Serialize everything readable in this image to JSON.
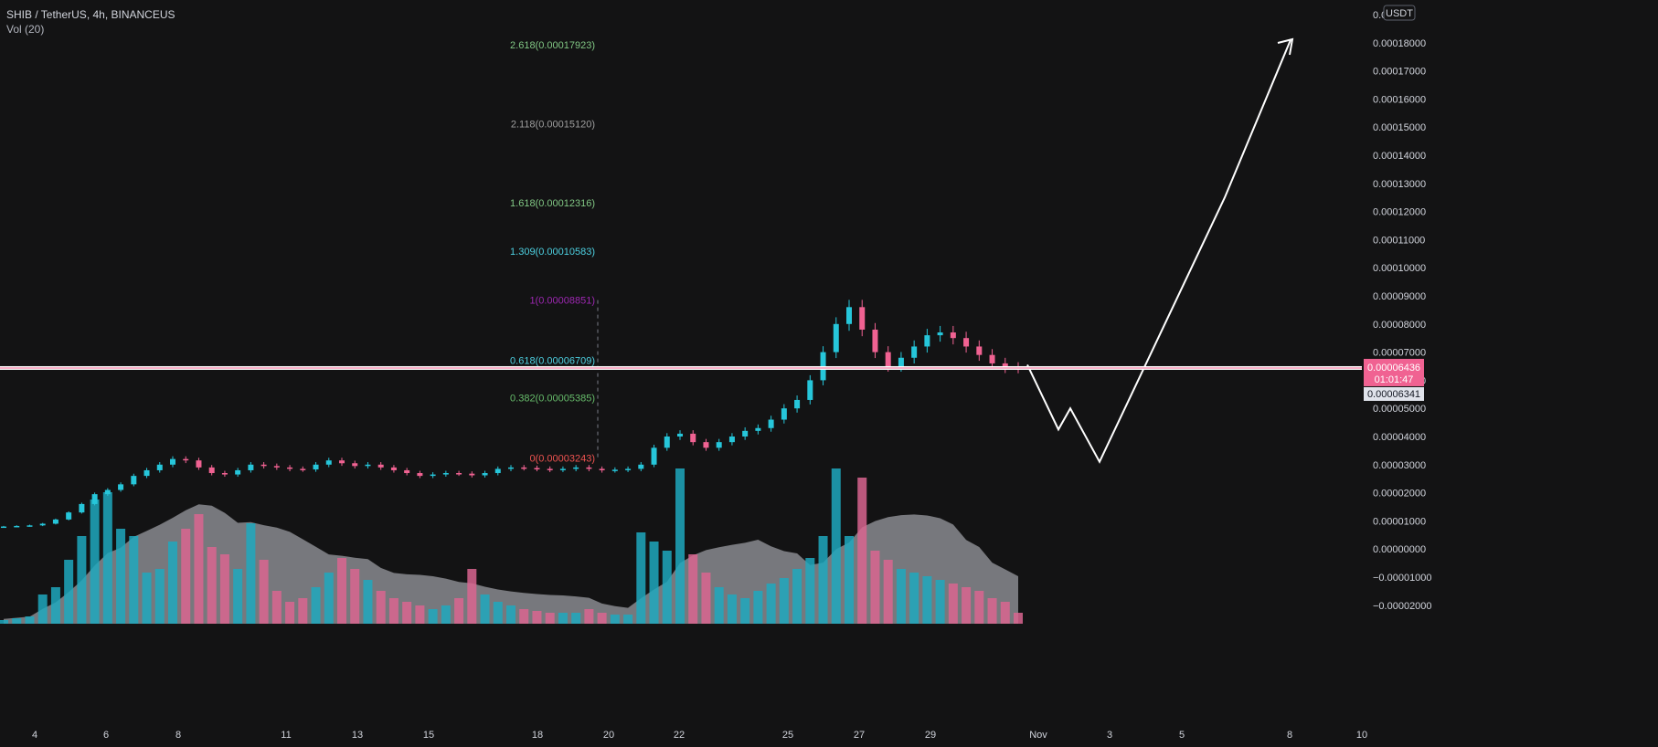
{
  "header": {
    "symbol_line": "SHIB / TetherUS, 4h, BINANCEUS",
    "volume_line": "Vol (20)"
  },
  "currency_badge": "USDT",
  "colors": {
    "background": "#131314",
    "up": "#26c6da",
    "down": "#f06292",
    "volume_up": "#1fa8bd",
    "volume_down": "#d9658f",
    "volume_ma": "#9a9ba0",
    "price_line": "#ffffff",
    "price_badge": "#f06292"
  },
  "fib_levels": [
    {
      "label": "2.618(0.00017923)",
      "price": 0.00017923,
      "color": "#81c784"
    },
    {
      "label": "2.118(0.00015120)",
      "price": 0.0001512,
      "color": "#9e9e9e"
    },
    {
      "label": "1.618(0.00012316)",
      "price": 0.00012316,
      "color": "#81c784"
    },
    {
      "label": "1.309(0.00010583)",
      "price": 0.00010583,
      "color": "#4dd0e1"
    },
    {
      "label": "1(0.00008851)",
      "price": 8.851e-05,
      "color": "#9c27b0"
    },
    {
      "label": "0.618(0.00006709)",
      "price": 6.709e-05,
      "color": "#4dd0e1"
    },
    {
      "label": "0.382(0.00005385)",
      "price": 5.385e-05,
      "color": "#66bb6a"
    },
    {
      "label": "0(0.00003243)",
      "price": 3.243e-05,
      "color": "#ef5350"
    }
  ],
  "price_scale": {
    "labels": [
      "0.00019000",
      "0.00018000",
      "0.00017000",
      "0.00016000",
      "0.00015000",
      "0.00014000",
      "0.00013000",
      "0.00012000",
      "0.00011000",
      "0.00010000",
      "0.00009000",
      "0.00008000",
      "0.00007000",
      "0.00006000",
      "0.00005000",
      "0.00004000",
      "0.00003000",
      "0.00002000",
      "0.00001000",
      "0.00000000",
      "−0.00001000",
      "−0.00002000"
    ],
    "values": [
      0.00019,
      0.00018,
      0.00017,
      0.00016,
      0.00015,
      0.00014,
      0.00013,
      0.00012,
      0.00011,
      0.0001,
      9e-05,
      8e-05,
      7e-05,
      6e-05,
      5e-05,
      4e-05,
      3e-05,
      2e-05,
      1e-05,
      0,
      -1e-05,
      -2e-05
    ],
    "top_label_display": "0.0",
    "current_price": "0.00006436",
    "countdown": "01:01:47",
    "secondary_price": "0.00006341"
  },
  "time_axis": {
    "labels": [
      "4",
      "6",
      "8",
      "11",
      "13",
      "15",
      "18",
      "20",
      "22",
      "25",
      "27",
      "29",
      "Nov",
      "3",
      "5",
      "8",
      "10"
    ]
  },
  "chart_data": {
    "type": "candlestick",
    "symbol": "SHIB / TetherUS",
    "interval": "4h",
    "exchange": "BINANCEUS",
    "ylim": [
      -2.3e-05,
      0.000191
    ],
    "close_series_approx": [
      8e-06,
      8.2e-06,
      8.4e-06,
      9e-06,
      1.05e-05,
      1.3e-05,
      1.6e-05,
      1.95e-05,
      2.1e-05,
      2.3e-05,
      2.6e-05,
      2.8e-05,
      3e-05,
      3.2e-05,
      3.15e-05,
      2.9e-05,
      2.7e-05,
      2.65e-05,
      2.8e-05,
      3e-05,
      2.95e-05,
      2.9e-05,
      2.85e-05,
      2.83e-05,
      3e-05,
      3.15e-05,
      3.05e-05,
      2.95e-05,
      3e-05,
      2.9e-05,
      2.8e-05,
      2.7e-05,
      2.6e-05,
      2.65e-05,
      2.7e-05,
      2.68e-05,
      2.62e-05,
      2.7e-05,
      2.85e-05,
      2.9e-05,
      2.88e-05,
      2.85e-05,
      2.82e-05,
      2.85e-05,
      2.9e-05,
      2.85e-05,
      2.8e-05,
      2.82e-05,
      2.85e-05,
      3e-05,
      3.6e-05,
      4e-05,
      4.1e-05,
      3.8e-05,
      3.6e-05,
      3.8e-05,
      4e-05,
      4.2e-05,
      4.3e-05,
      4.6e-05,
      5e-05,
      5.3e-05,
      6e-05,
      7e-05,
      8e-05,
      8.6e-05,
      7.8e-05,
      7e-05,
      6.5e-05,
      6.8e-05,
      7.2e-05,
      7.6e-05,
      7.7e-05,
      7.5e-05,
      7.2e-05,
      6.9e-05,
      6.6e-05,
      6.45e-05,
      6.44e-05
    ],
    "volume_approx": [
      2,
      3,
      4,
      16,
      20,
      35,
      48,
      68,
      72,
      52,
      48,
      28,
      30,
      45,
      52,
      60,
      42,
      38,
      30,
      55,
      35,
      18,
      12,
      14,
      20,
      28,
      36,
      30,
      24,
      18,
      14,
      12,
      10,
      8,
      10,
      14,
      30,
      16,
      12,
      10,
      8,
      7,
      6,
      6,
      6,
      8,
      6,
      5,
      5,
      50,
      45,
      40,
      85,
      38,
      28,
      20,
      16,
      14,
      18,
      22,
      25,
      30,
      36,
      48,
      85,
      48,
      80,
      40,
      35,
      30,
      28,
      26,
      24,
      22,
      20,
      18,
      14,
      12,
      6
    ],
    "projection": {
      "points": [
        [
          6.5e-05,
          "now"
        ],
        [
          4.2e-05,
          "Nov 1"
        ],
        [
          5e-05,
          "Nov 1"
        ],
        [
          3.1e-05,
          "Nov 3"
        ],
        [
          0.000125,
          "Nov 6"
        ],
        [
          0.00018,
          "Nov 8"
        ]
      ]
    }
  }
}
